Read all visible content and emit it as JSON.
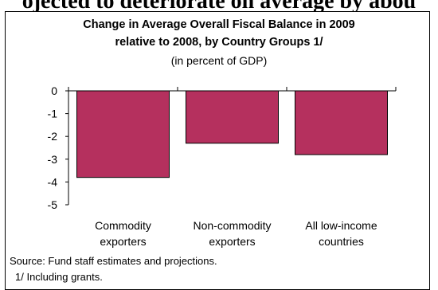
{
  "header_cutoff_text": "ojected to deteriorate on average by abou",
  "chart_data": {
    "type": "bar",
    "title_line1": "Change in Average Overall Fiscal Balance in 2009",
    "title_line2": "relative to 2008, by Country Groups 1/",
    "subtitle": "(in percent of GDP)",
    "categories": [
      [
        "Commodity",
        "exporters"
      ],
      [
        "Non-commodity",
        "exporters"
      ],
      [
        "All low-income",
        "countries"
      ]
    ],
    "values": [
      -3.8,
      -2.3,
      -2.8
    ],
    "ylim": [
      -5,
      0
    ],
    "yticks": [
      "0",
      "-1",
      "-2",
      "-3",
      "-4",
      "-5"
    ],
    "bar_color": "#b5305e",
    "grid": false,
    "legend": "none"
  },
  "footnotes": {
    "source": "Source: Fund staff estimates and projections.",
    "note": "1/ Including grants."
  }
}
